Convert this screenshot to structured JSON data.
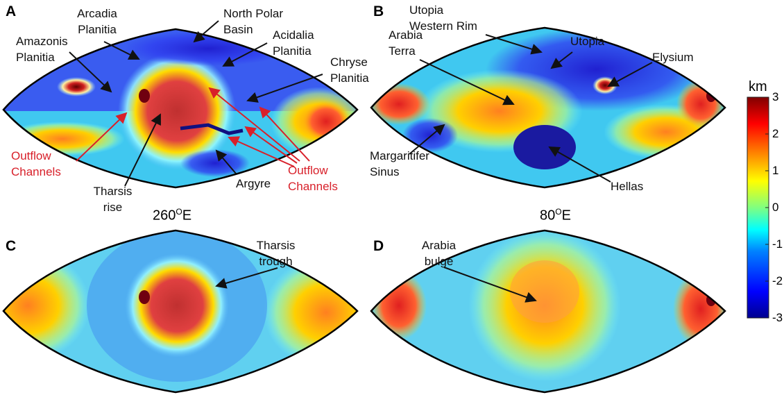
{
  "panels": [
    {
      "letter": "A",
      "longitude": "260",
      "lon_sup": "O",
      "lon_suffix": "E",
      "annotations": {
        "arcadia": [
          "Arcadia",
          "Planitia"
        ],
        "north_polar": [
          "North Polar",
          "Basin"
        ],
        "amazonis": [
          "Amazonis",
          "Planitia"
        ],
        "acidalia": [
          "Acidalia",
          "Planitia"
        ],
        "chryse": [
          "Chryse",
          "Planitia"
        ],
        "outflow_left": [
          "Outflow",
          "Channels"
        ],
        "tharsis": [
          "Tharsis",
          "rise"
        ],
        "argyre": "Argyre",
        "outflow_right": [
          "Outflow",
          "Channels"
        ]
      }
    },
    {
      "letter": "B",
      "longitude": "80",
      "lon_sup": "O",
      "lon_suffix": "E",
      "annotations": {
        "utopia_rim": [
          "Utopia",
          "Western Rim"
        ],
        "arabia": [
          "Arabia",
          "Terra"
        ],
        "utopia": "Utopia",
        "elysium": "Elysium",
        "margaritifer": [
          "Margaritifer",
          "Sinus"
        ],
        "hellas": "Hellas"
      }
    },
    {
      "letter": "C",
      "annotations": {
        "tharsis_trough": [
          "Tharsis",
          "trough"
        ]
      }
    },
    {
      "letter": "D",
      "annotations": {
        "arabia_bulge": [
          "Arabia",
          "bulge"
        ]
      }
    }
  ],
  "colorbar": {
    "unit": "km",
    "ticks": [
      "3",
      "2",
      "1",
      "0",
      "-1",
      "-2",
      "-3"
    ],
    "range": [
      -3,
      3
    ],
    "colors": [
      "#00008f",
      "#0000ff",
      "#0080ff",
      "#00ffff",
      "#80ff80",
      "#ffff00",
      "#ff8000",
      "#ff0000",
      "#800000"
    ]
  },
  "annotation_colors": {
    "black": "#111111",
    "red": "#d8202a"
  }
}
